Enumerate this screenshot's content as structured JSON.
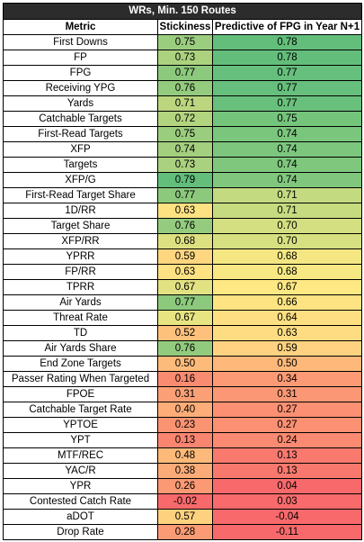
{
  "table": {
    "title": "WRs, Min. 150 Routes",
    "headers": [
      "Metric",
      "Stickiness",
      "Predictive of FPG in Year N+1"
    ],
    "rows": [
      {
        "metric": "First Downs",
        "stickiness": "0.75",
        "predictive": "0.78",
        "stick_color": "#9bcd7f",
        "pred_color": "#63be7b"
      },
      {
        "metric": "FP",
        "stickiness": "0.73",
        "predictive": "0.78",
        "stick_color": "#acd27f",
        "pred_color": "#63be7b"
      },
      {
        "metric": "FPG",
        "stickiness": "0.77",
        "predictive": "0.77",
        "stick_color": "#8dc97d",
        "pred_color": "#66bf7c"
      },
      {
        "metric": "Receiving YPG",
        "stickiness": "0.76",
        "predictive": "0.77",
        "stick_color": "#94cb7e",
        "pred_color": "#66bf7c"
      },
      {
        "metric": "Yards",
        "stickiness": "0.71",
        "predictive": "0.77",
        "stick_color": "#bbd67f",
        "pred_color": "#68c07c"
      },
      {
        "metric": "Catchable Targets",
        "stickiness": "0.72",
        "predictive": "0.75",
        "stick_color": "#b2d47f",
        "pred_color": "#74c47c"
      },
      {
        "metric": "First-Read Targets",
        "stickiness": "0.75",
        "predictive": "0.74",
        "stick_color": "#9bcd7e",
        "pred_color": "#7bc67d"
      },
      {
        "metric": "XFP",
        "stickiness": "0.74",
        "predictive": "0.74",
        "stick_color": "#a3cf7f",
        "pred_color": "#7dc67d"
      },
      {
        "metric": "Targets",
        "stickiness": "0.73",
        "predictive": "0.74",
        "stick_color": "#aad17f",
        "pred_color": "#7ec77d"
      },
      {
        "metric": "XFP/G",
        "stickiness": "0.79",
        "predictive": "0.74",
        "stick_color": "#63be7b",
        "pred_color": "#80c77d"
      },
      {
        "metric": "First-Read Target Share",
        "stickiness": "0.77",
        "predictive": "0.71",
        "stick_color": "#8cc97d",
        "pred_color": "#c4da80"
      },
      {
        "metric": "1D/RR",
        "stickiness": "0.63",
        "predictive": "0.71",
        "stick_color": "#fee282",
        "pred_color": "#c6db80"
      },
      {
        "metric": "Target Share",
        "stickiness": "0.76",
        "predictive": "0.70",
        "stick_color": "#94cb7e",
        "pred_color": "#d3df81"
      },
      {
        "metric": "XFP/RR",
        "stickiness": "0.68",
        "predictive": "0.70",
        "stick_color": "#dde081",
        "pred_color": "#d7e081"
      },
      {
        "metric": "YPRR",
        "stickiness": "0.59",
        "predictive": "0.68",
        "stick_color": "#fed680",
        "pred_color": "#f4e783"
      },
      {
        "metric": "FP/RR",
        "stickiness": "0.63",
        "predictive": "0.68",
        "stick_color": "#fee182",
        "pred_color": "#f7e883"
      },
      {
        "metric": "TPRR",
        "stickiness": "0.67",
        "predictive": "0.67",
        "stick_color": "#e3e282",
        "pred_color": "#fee883"
      },
      {
        "metric": "Air Yards",
        "stickiness": "0.77",
        "predictive": "0.66",
        "stick_color": "#8cc97d",
        "pred_color": "#fee382"
      },
      {
        "metric": "Threat Rate",
        "stickiness": "0.67",
        "predictive": "0.64",
        "stick_color": "#e8e482",
        "pred_color": "#fee082"
      },
      {
        "metric": "TD",
        "stickiness": "0.52",
        "predictive": "0.63",
        "stick_color": "#fdc17c",
        "pred_color": "#fedd82"
      },
      {
        "metric": "Air Yards Share",
        "stickiness": "0.76",
        "predictive": "0.59",
        "stick_color": "#93cb7e",
        "pred_color": "#fed280"
      },
      {
        "metric": "End Zone Targets",
        "stickiness": "0.50",
        "predictive": "0.50",
        "stick_color": "#fdbb7b",
        "pred_color": "#fdb87a"
      },
      {
        "metric": "Passer Rating When Targeted",
        "stickiness": "0.16",
        "predictive": "0.34",
        "stick_color": "#f98b70",
        "pred_color": "#fc9a75"
      },
      {
        "metric": "FPOE",
        "stickiness": "0.31",
        "predictive": "0.31",
        "stick_color": "#fa9f76",
        "pred_color": "#fb9774"
      },
      {
        "metric": "Catchable Target Rate",
        "stickiness": "0.40",
        "predictive": "0.27",
        "stick_color": "#fcad78",
        "pred_color": "#fb9073"
      },
      {
        "metric": "YPTOE",
        "stickiness": "0.23",
        "predictive": "0.27",
        "stick_color": "#fa9372",
        "pred_color": "#fb9073"
      },
      {
        "metric": "YPT",
        "stickiness": "0.13",
        "predictive": "0.24",
        "stick_color": "#f98570",
        "pred_color": "#fa8a71"
      },
      {
        "metric": "MTF/REC",
        "stickiness": "0.48",
        "predictive": "0.13",
        "stick_color": "#fdb97a",
        "pred_color": "#f9796e"
      },
      {
        "metric": "YAC/R",
        "stickiness": "0.38",
        "predictive": "0.13",
        "stick_color": "#fbab78",
        "pred_color": "#f9786e"
      },
      {
        "metric": "YPR",
        "stickiness": "0.26",
        "predictive": "0.04",
        "stick_color": "#fa9974",
        "pred_color": "#f8696b"
      },
      {
        "metric": "Contested Catch Rate",
        "stickiness": "-0.02",
        "predictive": "0.03",
        "stick_color": "#f8696b",
        "pred_color": "#f86a6b"
      },
      {
        "metric": "aDOT",
        "stickiness": "0.57",
        "predictive": "-0.04",
        "stick_color": "#fed17f",
        "pred_color": "#f8696b"
      },
      {
        "metric": "Drop Rate",
        "stickiness": "0.28",
        "predictive": "-0.11",
        "stick_color": "#fa9b75",
        "pred_color": "#f8696b"
      }
    ]
  }
}
